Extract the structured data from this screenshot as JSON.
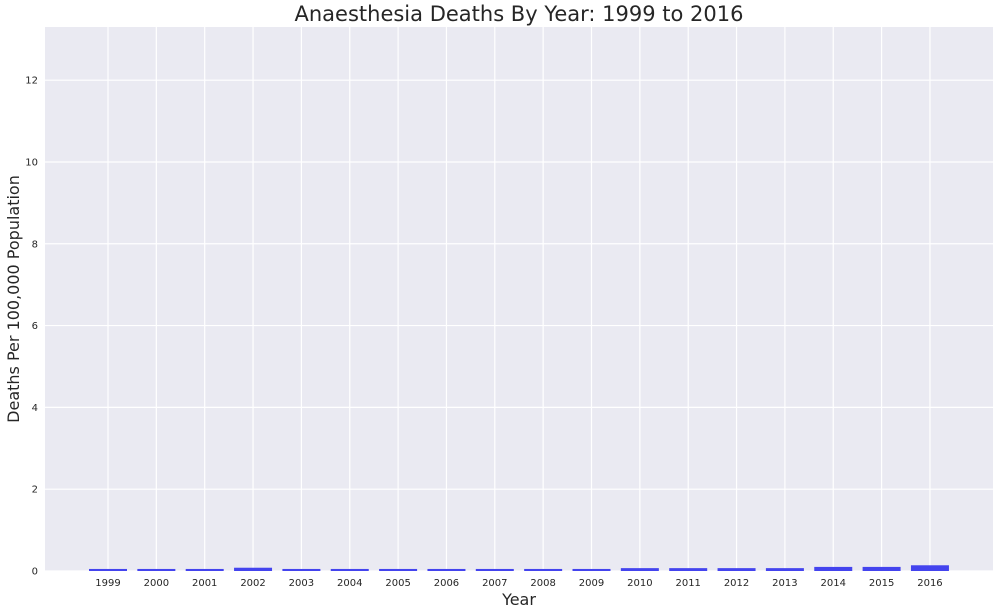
{
  "chart_data": {
    "type": "bar",
    "title": "Anaesthesia Deaths By Year: 1999 to 2016",
    "xlabel": "Year",
    "ylabel": "Deaths Per 100,000 Population",
    "categories": [
      "1999",
      "2000",
      "2001",
      "2002",
      "2003",
      "2004",
      "2005",
      "2006",
      "2007",
      "2008",
      "2009",
      "2010",
      "2011",
      "2012",
      "2013",
      "2014",
      "2015",
      "2016"
    ],
    "values": [
      0.05,
      0.05,
      0.05,
      0.08,
      0.05,
      0.05,
      0.05,
      0.05,
      0.05,
      0.05,
      0.05,
      0.07,
      0.07,
      0.07,
      0.07,
      0.1,
      0.1,
      0.14
    ],
    "ylim": [
      0,
      13.3
    ],
    "yticks": [
      0,
      2,
      4,
      6,
      8,
      10,
      12
    ],
    "grid": true,
    "legend": "none",
    "colors": {
      "bar": "#4444ee",
      "plot_background": "#eaeaf2",
      "grid": "#ffffff"
    }
  }
}
